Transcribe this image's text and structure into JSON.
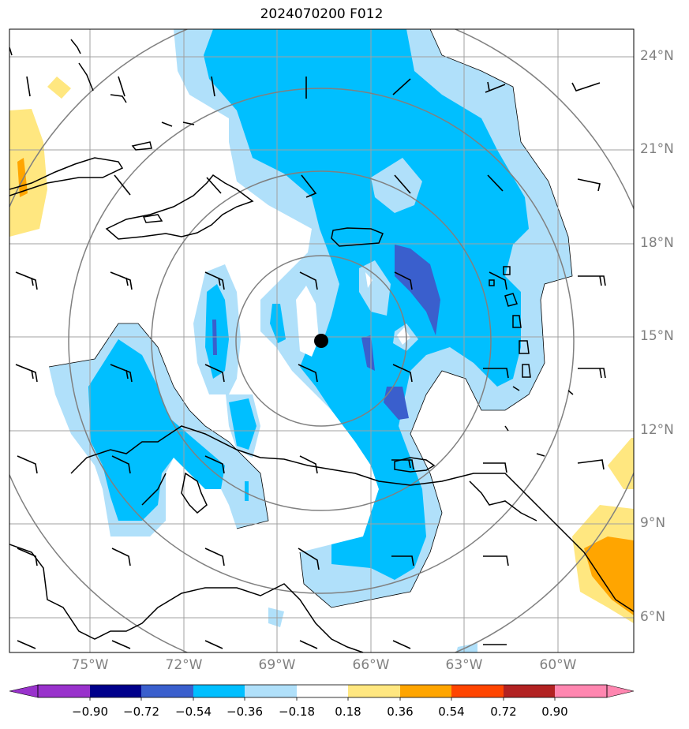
{
  "title": "2024070200 F012",
  "lat_labels": [
    "24°N",
    "21°N",
    "18°N",
    "15°N",
    "12°N",
    "9°N",
    "6°N"
  ],
  "lon_labels": [
    "75°W",
    "72°W",
    "69°W",
    "66°W",
    "63°W",
    "60°W"
  ],
  "colorbar": {
    "labels": [
      "−0.90",
      "−0.72",
      "−0.54",
      "−0.36",
      "−0.18",
      "0.18",
      "0.36",
      "0.54",
      "0.72",
      "0.90"
    ],
    "colors": [
      "#9932cc",
      "#00008b",
      "#3a5fcd",
      "#00bfff",
      "#b0e0fa",
      "#ffffff",
      "#ffe780",
      "#ffa500",
      "#ff4500",
      "#b22222",
      "#ff86b0"
    ]
  },
  "palette": {
    "light_blue": "#b0e0fa",
    "mid_blue": "#00bfff",
    "dark_blue": "#3a5fcd",
    "light_yellow": "#ffe780",
    "orange": "#ffa500",
    "grid": "#a0a0a0",
    "rings": "#808080"
  },
  "center_marker": {
    "lat": 15.0,
    "lon": -67.7
  }
}
